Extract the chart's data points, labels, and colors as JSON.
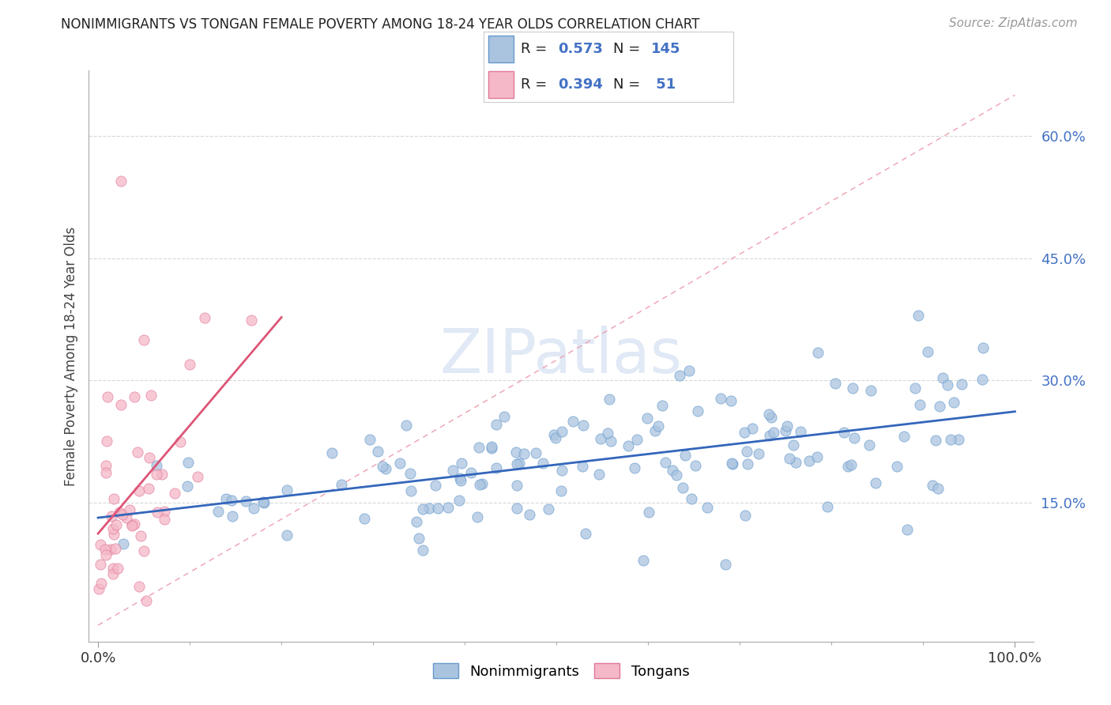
{
  "title": "NONIMMIGRANTS VS TONGAN FEMALE POVERTY AMONG 18-24 YEAR OLDS CORRELATION CHART",
  "source": "Source: ZipAtlas.com",
  "ylabel": "Female Poverty Among 18-24 Year Olds",
  "background_color": "#ffffff",
  "watermark": "ZIPatlas",
  "nonimmigrant_color": "#aac4e0",
  "nonimmigrant_edge_color": "#6699cc",
  "tongan_color": "#f5b8c8",
  "tongan_edge_color": "#e07898",
  "nonimmigrant_line_color": "#3366bb",
  "tongan_line_color": "#dd5577",
  "diagonal_line_color": "#f0a0b0",
  "legend_nonimmigrant_label": "Nonimmigrants",
  "legend_tongan_label": "Tongans",
  "R_nonimmigrant": 0.573,
  "N_nonimmigrant": 145,
  "R_tongan": 0.394,
  "N_tongan": 51,
  "ytick_color": "#4472c4",
  "ytick_vals": [
    0.15,
    0.3,
    0.45,
    0.6
  ],
  "ytick_labels": [
    "15.0%",
    "30.0%",
    "45.0%",
    "60.0%"
  ],
  "grid_color": "#d8d8d8",
  "title_fontsize": 12,
  "source_fontsize": 11,
  "tick_fontsize": 13
}
